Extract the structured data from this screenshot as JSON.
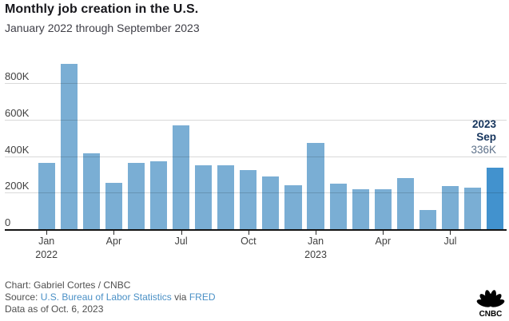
{
  "header": {
    "title": "Monthly job creation in the U.S.",
    "subtitle": "January 2022 through September 2023"
  },
  "chart_data": {
    "type": "bar",
    "title": "Monthly job creation in the U.S.",
    "subtitle": "January 2022 through September 2023",
    "unit": "thousands of jobs",
    "categories": [
      "Jan 2022",
      "Feb 2022",
      "Mar 2022",
      "Apr 2022",
      "May 2022",
      "Jun 2022",
      "Jul 2022",
      "Aug 2022",
      "Sep 2022",
      "Oct 2022",
      "Nov 2022",
      "Dec 2022",
      "Jan 2023",
      "Feb 2023",
      "Mar 2023",
      "Apr 2023",
      "May 2023",
      "Jun 2023",
      "Jul 2023",
      "Aug 2023",
      "Sep 2023"
    ],
    "values": [
      364,
      904,
      414,
      254,
      364,
      370,
      568,
      352,
      350,
      324,
      290,
      239,
      472,
      248,
      217,
      217,
      281,
      105,
      236,
      227,
      336
    ],
    "highlight_index": 20,
    "ylim": [
      0,
      930
    ],
    "grid": "horizontal",
    "legend": null,
    "y_ticks": [
      {
        "value": 0,
        "label": "0"
      },
      {
        "value": 200,
        "label": "200K"
      },
      {
        "value": 400,
        "label": "400K"
      },
      {
        "value": 600,
        "label": "600K"
      },
      {
        "value": 800,
        "label": "800K"
      }
    ],
    "x_ticks": [
      {
        "index": 0,
        "label": "Jan",
        "year": "2022"
      },
      {
        "index": 3,
        "label": "Apr",
        "year": ""
      },
      {
        "index": 6,
        "label": "Jul",
        "year": ""
      },
      {
        "index": 9,
        "label": "Oct",
        "year": ""
      },
      {
        "index": 12,
        "label": "Jan",
        "year": "2023"
      },
      {
        "index": 15,
        "label": "Apr",
        "year": ""
      },
      {
        "index": 18,
        "label": "Jul",
        "year": ""
      }
    ],
    "callout": {
      "year": "2023",
      "month": "Sep",
      "value": "336K"
    },
    "colors": {
      "bar": "#7aaed4",
      "bar_highlight": "#4292ce",
      "grid": "#d9d9d9",
      "axis": "#141414",
      "callout_strong": "#16355d",
      "callout_value": "#5c7089"
    }
  },
  "footer": {
    "credit": "Chart: Gabriel Cortes / CNBC",
    "source_label": "Source:",
    "source_link_1": "U.S. Bureau of Labor Statistics",
    "source_conjunction": "via",
    "source_link_2": "FRED",
    "data_as_of": "Data as of Oct. 6, 2023",
    "link_color": "#4a90c6"
  },
  "logo": {
    "name": "CNBC",
    "color": "#000000"
  }
}
